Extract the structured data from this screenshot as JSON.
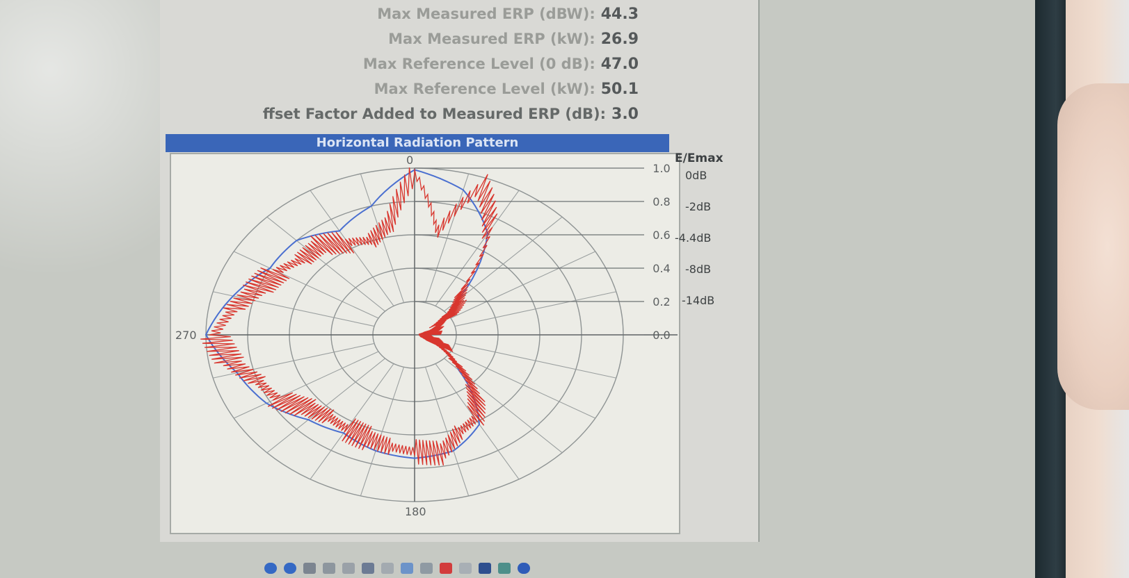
{
  "stats": [
    {
      "label": "Max Measured ERP (dBW):",
      "value": "44.3"
    },
    {
      "label": "Max Measured ERP (kW):",
      "value": "26.9"
    },
    {
      "label": "Max Reference Level (0 dB):",
      "value": "47.0"
    },
    {
      "label": "Max Reference Level (kW):",
      "value": "50.1"
    },
    {
      "label": "ffset Factor Added to Measured ERP (dB):",
      "value": "3.0"
    }
  ],
  "chart_title": "Horizontal Radiation Pattern",
  "scale_header": "E/Emax",
  "db_labels": [
    "0dB",
    "-2dB",
    "-4.4dB",
    "-8dB",
    "-14dB"
  ],
  "chart_data": {
    "type": "polar",
    "angle_labels": [
      "0",
      "270",
      "180"
    ],
    "radial_ticks": [
      "1.0",
      "0.8",
      "0.6",
      "0.4",
      "0.2",
      "0.0"
    ],
    "radial_range": [
      0,
      1
    ],
    "series": [
      {
        "color": "#4a6fd0",
        "angles": [
          0,
          15,
          30,
          45,
          60,
          75,
          90,
          105,
          120,
          135,
          150,
          165,
          180,
          195,
          210,
          225,
          240,
          255,
          270,
          285,
          300,
          315,
          330,
          345,
          360
        ],
        "values": [
          0.99,
          0.9,
          0.7,
          0.28,
          0.15,
          0.08,
          0.05,
          0.08,
          0.15,
          0.3,
          0.62,
          0.72,
          0.74,
          0.72,
          0.68,
          0.72,
          0.82,
          0.88,
          1.0,
          0.9,
          0.8,
          0.8,
          0.72,
          0.8,
          0.99
        ]
      },
      {
        "color": "#d8362e",
        "angles": [
          0,
          10,
          20,
          30,
          40,
          50,
          60,
          70,
          80,
          90,
          100,
          110,
          120,
          130,
          140,
          150,
          160,
          170,
          180,
          190,
          200,
          210,
          220,
          230,
          240,
          250,
          260,
          270,
          280,
          290,
          300,
          310,
          320,
          330,
          340,
          350,
          360
        ],
        "values": [
          0.97,
          0.62,
          0.95,
          0.72,
          0.35,
          0.25,
          0.15,
          0.1,
          0.06,
          0.05,
          0.07,
          0.1,
          0.14,
          0.25,
          0.45,
          0.58,
          0.62,
          0.72,
          0.7,
          0.68,
          0.66,
          0.65,
          0.64,
          0.68,
          0.76,
          0.8,
          0.9,
          0.96,
          0.88,
          0.8,
          0.76,
          0.7,
          0.7,
          0.64,
          0.6,
          0.68,
          0.97
        ]
      }
    ]
  },
  "colors": {
    "title_bar": "#3a66b8",
    "blue_series": "#4a6fd0",
    "red_series": "#d8362e"
  }
}
